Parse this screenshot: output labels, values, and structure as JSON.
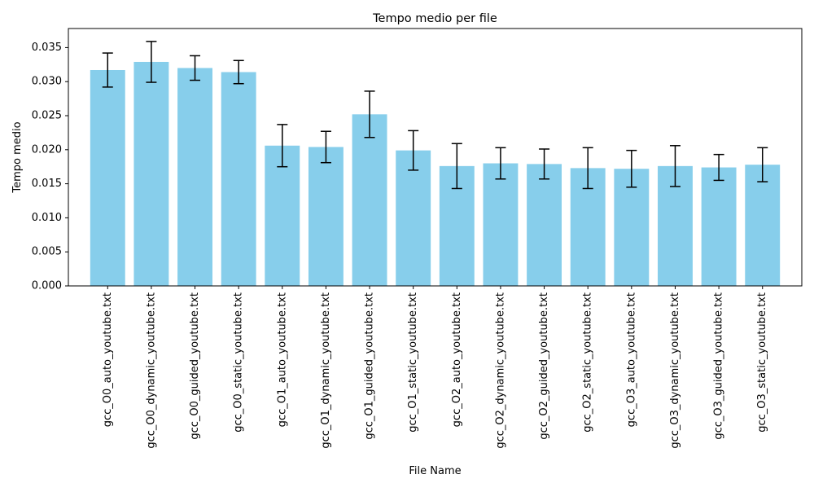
{
  "chart_data": {
    "type": "bar",
    "title": "Tempo medio per file",
    "xlabel": "File Name",
    "ylabel": "Tempo medio",
    "ylim": [
      0,
      0.0378
    ],
    "yticks": [
      "0.000",
      "0.005",
      "0.010",
      "0.015",
      "0.020",
      "0.025",
      "0.030",
      "0.035"
    ],
    "ytick_values": [
      0,
      0.005,
      0.01,
      0.015,
      0.02,
      0.025,
      0.03,
      0.035
    ],
    "grid": false,
    "bar_color": "#87ceeb",
    "error_color": "#000000",
    "categories": [
      "gcc_O0_auto_youtube.txt",
      "gcc_O0_dynamic_youtube.txt",
      "gcc_O0_guided_youtube.txt",
      "gcc_O0_static_youtube.txt",
      "gcc_O1_auto_youtube.txt",
      "gcc_O1_dynamic_youtube.txt",
      "gcc_O1_guided_youtube.txt",
      "gcc_O1_static_youtube.txt",
      "gcc_O2_auto_youtube.txt",
      "gcc_O2_dynamic_youtube.txt",
      "gcc_O2_guided_youtube.txt",
      "gcc_O2_static_youtube.txt",
      "gcc_O3_auto_youtube.txt",
      "gcc_O3_dynamic_youtube.txt",
      "gcc_O3_guided_youtube.txt",
      "gcc_O3_static_youtube.txt"
    ],
    "values": [
      0.0317,
      0.0329,
      0.032,
      0.0314,
      0.0206,
      0.0204,
      0.0252,
      0.0199,
      0.0176,
      0.018,
      0.0179,
      0.0173,
      0.0172,
      0.0176,
      0.0174,
      0.0178
    ],
    "errors": [
      0.0025,
      0.003,
      0.0018,
      0.0017,
      0.0031,
      0.0023,
      0.0034,
      0.0029,
      0.0033,
      0.0023,
      0.0022,
      0.003,
      0.0027,
      0.003,
      0.0019,
      0.0025
    ]
  }
}
